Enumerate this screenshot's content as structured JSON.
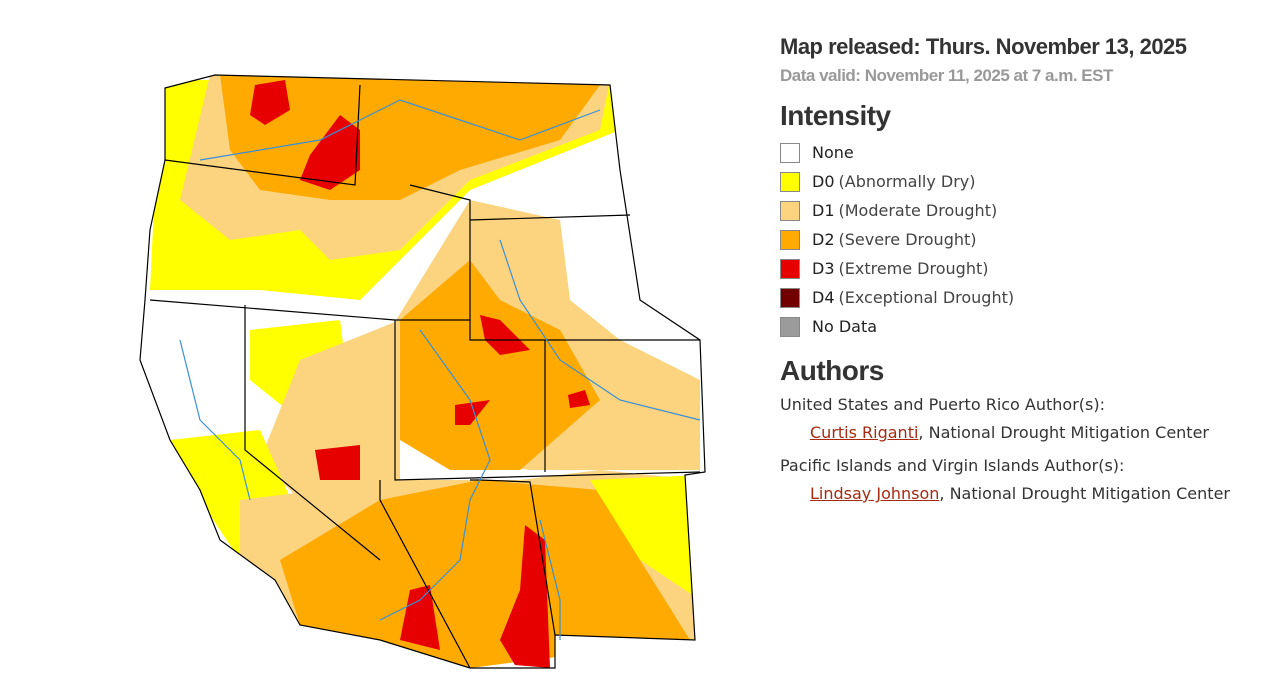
{
  "header": {
    "released": "Map released: Thurs. November 13, 2025",
    "valid": "Data valid: November 11, 2025 at 7 a.m. EST"
  },
  "legend": {
    "title": "Intensity",
    "items": [
      {
        "code": "None",
        "color": "#ffffff"
      },
      {
        "code": "D0",
        "label": "(Abnormally Dry)",
        "color": "#ffff00"
      },
      {
        "code": "D1",
        "label": "(Moderate Drought)",
        "color": "#fcd37f"
      },
      {
        "code": "D2",
        "label": "(Severe Drought)",
        "color": "#ffaa00"
      },
      {
        "code": "D3",
        "label": "(Extreme Drought)",
        "color": "#e60000"
      },
      {
        "code": "D4",
        "label": "(Exceptional Drought)",
        "color": "#730000"
      },
      {
        "code": "No Data",
        "color": "#9b9b9b"
      }
    ]
  },
  "authors": {
    "title": "Authors",
    "groups": [
      {
        "heading": "United States and Puerto Rico Author(s):",
        "name": "Curtis Riganti",
        "affiliation": ", National Drought Mitigation Center"
      },
      {
        "heading": "Pacific Islands and Virgin Islands Author(s):",
        "name": "Lindsay Johnson",
        "affiliation": ", National Drought Mitigation Center"
      }
    ]
  }
}
